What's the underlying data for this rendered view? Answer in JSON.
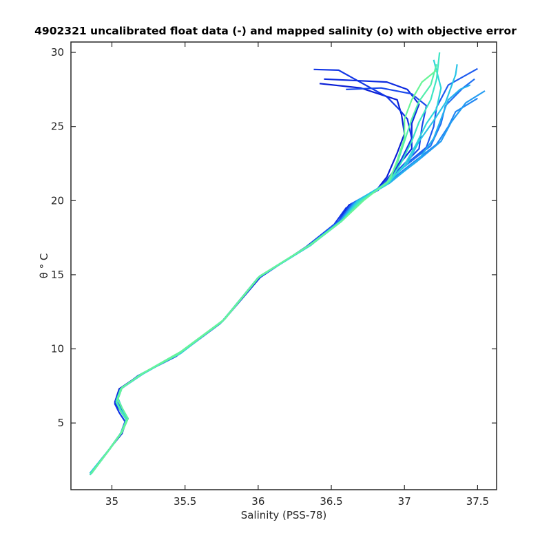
{
  "chart_data": {
    "type": "line",
    "title": "4902321 uncalibrated float data (-) and mapped salinity (o) with objective error",
    "xlabel": "Salinity (PSS-78)",
    "ylabel": "θ ° C",
    "xlim": [
      34.72,
      37.63
    ],
    "ylim": [
      0.5,
      30.7
    ],
    "xticks": [
      35,
      35.5,
      36,
      36.5,
      37,
      37.5
    ],
    "xtick_labels": [
      "35",
      "35.5",
      "36",
      "36.5",
      "37",
      "37.5"
    ],
    "yticks": [
      5,
      10,
      15,
      20,
      25,
      30
    ],
    "ytick_labels": [
      "5",
      "10",
      "15",
      "20",
      "25",
      "30"
    ],
    "grid": false,
    "colormap_note": "profiles colored dark blue (early) to green (late)",
    "series": [
      {
        "color": "#0a1fd6",
        "points": [
          [
            34.85,
            1.6
          ],
          [
            34.98,
            3.2
          ],
          [
            35.07,
            4.3
          ],
          [
            35.1,
            5.2
          ],
          [
            35.06,
            5.8
          ],
          [
            35.02,
            6.4
          ],
          [
            35.05,
            7.3
          ],
          [
            35.2,
            8.3
          ],
          [
            35.45,
            9.6
          ],
          [
            35.75,
            11.8
          ],
          [
            36.0,
            14.8
          ],
          [
            36.35,
            17.0
          ],
          [
            36.55,
            18.6
          ],
          [
            36.62,
            19.7
          ],
          [
            36.8,
            20.6
          ],
          [
            36.88,
            21.6
          ],
          [
            36.95,
            23.2
          ],
          [
            37.0,
            24.5
          ],
          [
            36.98,
            25.8
          ],
          [
            36.95,
            26.8
          ],
          [
            36.7,
            27.6
          ],
          [
            36.42,
            27.9
          ]
        ]
      },
      {
        "color": "#0d2be0",
        "points": [
          [
            34.86,
            1.6
          ],
          [
            34.99,
            3.3
          ],
          [
            35.07,
            4.4
          ],
          [
            35.11,
            5.3
          ],
          [
            35.07,
            5.9
          ],
          [
            35.03,
            6.5
          ],
          [
            35.06,
            7.3
          ],
          [
            35.22,
            8.4
          ],
          [
            35.48,
            9.8
          ],
          [
            35.77,
            12.0
          ],
          [
            36.02,
            14.9
          ],
          [
            36.38,
            17.2
          ],
          [
            36.58,
            18.8
          ],
          [
            36.66,
            19.9
          ],
          [
            36.82,
            20.7
          ],
          [
            36.92,
            21.9
          ],
          [
            37.05,
            23.5
          ],
          [
            37.05,
            25.2
          ],
          [
            37.1,
            26.5
          ],
          [
            37.02,
            27.5
          ],
          [
            36.88,
            28.0
          ],
          [
            36.45,
            28.2
          ]
        ]
      },
      {
        "color": "#1236e6",
        "points": [
          [
            34.85,
            1.5
          ],
          [
            34.98,
            3.2
          ],
          [
            35.06,
            4.3
          ],
          [
            35.09,
            5.1
          ],
          [
            35.05,
            5.7
          ],
          [
            35.02,
            6.3
          ],
          [
            35.05,
            7.2
          ],
          [
            35.18,
            8.2
          ],
          [
            35.44,
            9.5
          ],
          [
            35.74,
            11.7
          ],
          [
            36.01,
            14.8
          ],
          [
            36.33,
            16.9
          ],
          [
            36.52,
            18.4
          ],
          [
            36.6,
            19.5
          ],
          [
            36.78,
            20.5
          ],
          [
            36.9,
            21.5
          ],
          [
            36.98,
            22.8
          ],
          [
            37.05,
            24.2
          ],
          [
            37.02,
            25.5
          ],
          [
            36.96,
            26.2
          ],
          [
            36.88,
            27.0
          ],
          [
            36.55,
            28.8
          ],
          [
            36.38,
            28.85
          ]
        ]
      },
      {
        "color": "#1b49ec",
        "points": [
          [
            34.86,
            1.6
          ],
          [
            34.99,
            3.3
          ],
          [
            35.07,
            4.4
          ],
          [
            35.1,
            5.2
          ],
          [
            35.06,
            5.8
          ],
          [
            35.03,
            6.5
          ],
          [
            35.06,
            7.3
          ],
          [
            35.21,
            8.3
          ],
          [
            35.46,
            9.7
          ],
          [
            35.76,
            11.9
          ],
          [
            36.0,
            14.8
          ],
          [
            36.36,
            17.0
          ],
          [
            36.56,
            18.6
          ],
          [
            36.64,
            19.8
          ],
          [
            36.8,
            20.6
          ],
          [
            36.95,
            22.0
          ],
          [
            37.1,
            23.5
          ],
          [
            37.12,
            25.0
          ],
          [
            37.15,
            26.4
          ],
          [
            37.05,
            27.2
          ],
          [
            36.84,
            27.6
          ],
          [
            36.6,
            27.5
          ]
        ]
      },
      {
        "color": "#1e5bf0",
        "points": [
          [
            34.85,
            1.6
          ],
          [
            34.98,
            3.2
          ],
          [
            35.06,
            4.3
          ],
          [
            35.1,
            5.2
          ],
          [
            35.06,
            5.8
          ],
          [
            35.03,
            6.4
          ],
          [
            35.06,
            7.3
          ],
          [
            35.2,
            8.3
          ],
          [
            35.45,
            9.6
          ],
          [
            35.75,
            11.8
          ],
          [
            36.0,
            14.8
          ],
          [
            36.35,
            17.0
          ],
          [
            36.55,
            18.6
          ],
          [
            36.64,
            19.8
          ],
          [
            36.82,
            20.8
          ],
          [
            36.98,
            22.2
          ],
          [
            37.15,
            23.6
          ],
          [
            37.2,
            25.0
          ],
          [
            37.22,
            26.3
          ],
          [
            37.3,
            27.8
          ],
          [
            37.5,
            28.9
          ]
        ]
      },
      {
        "color": "#2070f2",
        "points": [
          [
            34.86,
            1.6
          ],
          [
            34.99,
            3.3
          ],
          [
            35.07,
            4.4
          ],
          [
            35.11,
            5.3
          ],
          [
            35.07,
            6.0
          ],
          [
            35.04,
            6.6
          ],
          [
            35.07,
            7.4
          ],
          [
            35.22,
            8.4
          ],
          [
            35.47,
            9.7
          ],
          [
            35.77,
            12.0
          ],
          [
            36.01,
            14.9
          ],
          [
            36.37,
            17.1
          ],
          [
            36.57,
            18.7
          ],
          [
            36.66,
            19.9
          ],
          [
            36.85,
            21.0
          ],
          [
            37.0,
            22.3
          ],
          [
            37.18,
            23.7
          ],
          [
            37.25,
            25.2
          ],
          [
            37.28,
            26.4
          ],
          [
            37.4,
            27.6
          ],
          [
            37.48,
            28.2
          ]
        ]
      },
      {
        "color": "#2287f3",
        "points": [
          [
            34.85,
            1.6
          ],
          [
            34.98,
            3.2
          ],
          [
            35.07,
            4.4
          ],
          [
            35.1,
            5.2
          ],
          [
            35.06,
            5.9
          ],
          [
            35.03,
            6.5
          ],
          [
            35.06,
            7.3
          ],
          [
            35.21,
            8.3
          ],
          [
            35.46,
            9.7
          ],
          [
            35.76,
            11.9
          ],
          [
            36.0,
            14.8
          ],
          [
            36.36,
            17.0
          ],
          [
            36.56,
            18.6
          ],
          [
            36.65,
            19.8
          ],
          [
            36.86,
            21.0
          ],
          [
            37.05,
            22.5
          ],
          [
            37.22,
            23.8
          ],
          [
            37.3,
            25.0
          ],
          [
            37.35,
            26.0
          ],
          [
            37.5,
            26.9
          ]
        ]
      },
      {
        "color": "#249cf2",
        "points": [
          [
            34.86,
            1.6
          ],
          [
            34.99,
            3.3
          ],
          [
            35.07,
            4.4
          ],
          [
            35.1,
            5.3
          ],
          [
            35.07,
            6.0
          ],
          [
            35.04,
            6.6
          ],
          [
            35.07,
            7.4
          ],
          [
            35.22,
            8.4
          ],
          [
            35.47,
            9.8
          ],
          [
            35.77,
            12.0
          ],
          [
            36.01,
            14.9
          ],
          [
            36.37,
            17.1
          ],
          [
            36.57,
            18.7
          ],
          [
            36.67,
            19.9
          ],
          [
            36.88,
            21.1
          ],
          [
            37.08,
            22.6
          ],
          [
            37.25,
            24.0
          ],
          [
            37.32,
            25.3
          ],
          [
            37.42,
            26.6
          ],
          [
            37.55,
            27.4
          ]
        ]
      },
      {
        "color": "#26b0ee",
        "points": [
          [
            34.85,
            1.5
          ],
          [
            34.98,
            3.2
          ],
          [
            35.06,
            4.3
          ],
          [
            35.1,
            5.2
          ],
          [
            35.06,
            5.8
          ],
          [
            35.03,
            6.4
          ],
          [
            35.06,
            7.3
          ],
          [
            35.2,
            8.3
          ],
          [
            35.45,
            9.6
          ],
          [
            35.75,
            11.8
          ],
          [
            36.0,
            14.8
          ],
          [
            36.35,
            17.0
          ],
          [
            36.56,
            18.6
          ],
          [
            36.66,
            19.8
          ],
          [
            36.9,
            21.2
          ],
          [
            37.1,
            22.8
          ],
          [
            37.2,
            24.2
          ],
          [
            37.25,
            25.5
          ],
          [
            37.3,
            26.8
          ],
          [
            37.38,
            27.5
          ],
          [
            37.45,
            27.8
          ]
        ]
      },
      {
        "color": "#29c4e6",
        "points": [
          [
            34.86,
            1.6
          ],
          [
            34.99,
            3.3
          ],
          [
            35.07,
            4.4
          ],
          [
            35.1,
            5.3
          ],
          [
            35.07,
            6.0
          ],
          [
            35.04,
            6.7
          ],
          [
            35.07,
            7.4
          ],
          [
            35.22,
            8.4
          ],
          [
            35.47,
            9.7
          ],
          [
            35.77,
            12.0
          ],
          [
            36.01,
            14.9
          ],
          [
            36.37,
            17.1
          ],
          [
            36.58,
            18.7
          ],
          [
            36.68,
            20.0
          ],
          [
            36.88,
            21.2
          ],
          [
            37.02,
            22.5
          ],
          [
            37.1,
            24.0
          ],
          [
            37.2,
            25.4
          ],
          [
            37.28,
            26.6
          ],
          [
            37.35,
            28.5
          ],
          [
            37.36,
            29.2
          ]
        ]
      },
      {
        "color": "#2fd6da",
        "points": [
          [
            34.85,
            1.6
          ],
          [
            34.98,
            3.2
          ],
          [
            35.06,
            4.3
          ],
          [
            35.1,
            5.2
          ],
          [
            35.06,
            5.9
          ],
          [
            35.03,
            6.5
          ],
          [
            35.06,
            7.3
          ],
          [
            35.21,
            8.3
          ],
          [
            35.46,
            9.7
          ],
          [
            35.76,
            11.9
          ],
          [
            36.0,
            14.8
          ],
          [
            36.36,
            17.0
          ],
          [
            36.57,
            18.6
          ],
          [
            36.68,
            19.9
          ],
          [
            36.88,
            21.1
          ],
          [
            37.0,
            22.4
          ],
          [
            37.08,
            23.8
          ],
          [
            37.15,
            25.2
          ],
          [
            37.22,
            26.2
          ],
          [
            37.25,
            27.6
          ],
          [
            37.2,
            29.5
          ]
        ]
      },
      {
        "color": "#3ee5c4",
        "points": [
          [
            34.86,
            1.6
          ],
          [
            34.99,
            3.3
          ],
          [
            35.07,
            4.4
          ],
          [
            35.11,
            5.3
          ],
          [
            35.07,
            6.0
          ],
          [
            35.04,
            6.6
          ],
          [
            35.07,
            7.4
          ],
          [
            35.22,
            8.4
          ],
          [
            35.47,
            9.8
          ],
          [
            35.77,
            12.0
          ],
          [
            36.01,
            14.9
          ],
          [
            36.37,
            17.1
          ],
          [
            36.58,
            18.7
          ],
          [
            36.7,
            20.0
          ],
          [
            36.9,
            21.3
          ],
          [
            36.98,
            22.6
          ],
          [
            37.05,
            24.0
          ],
          [
            37.1,
            25.3
          ],
          [
            37.18,
            26.8
          ],
          [
            37.22,
            28.2
          ],
          [
            37.24,
            30.0
          ]
        ]
      },
      {
        "color": "#52eeac",
        "points": [
          [
            34.85,
            1.5
          ],
          [
            34.98,
            3.2
          ],
          [
            35.06,
            4.3
          ],
          [
            35.1,
            5.2
          ],
          [
            35.06,
            5.8
          ],
          [
            35.03,
            6.4
          ],
          [
            35.06,
            7.3
          ],
          [
            35.2,
            8.3
          ],
          [
            35.45,
            9.6
          ],
          [
            35.75,
            11.8
          ],
          [
            36.0,
            14.8
          ],
          [
            36.35,
            17.0
          ],
          [
            36.57,
            18.6
          ],
          [
            36.7,
            19.9
          ],
          [
            36.88,
            21.2
          ],
          [
            36.95,
            22.5
          ],
          [
            37.0,
            24.0
          ],
          [
            37.05,
            25.5
          ],
          [
            37.1,
            26.7
          ],
          [
            37.18,
            27.8
          ],
          [
            37.22,
            29.2
          ]
        ]
      },
      {
        "color": "#68f598",
        "points": [
          [
            34.86,
            1.6
          ],
          [
            34.99,
            3.3
          ],
          [
            35.07,
            4.4
          ],
          [
            35.11,
            5.3
          ],
          [
            35.07,
            6.0
          ],
          [
            35.04,
            6.6
          ],
          [
            35.07,
            7.4
          ],
          [
            35.22,
            8.4
          ],
          [
            35.47,
            9.8
          ],
          [
            35.77,
            12.0
          ],
          [
            36.01,
            14.9
          ],
          [
            36.37,
            17.1
          ],
          [
            36.58,
            18.7
          ],
          [
            36.72,
            20.0
          ],
          [
            36.9,
            21.4
          ],
          [
            36.95,
            22.7
          ],
          [
            37.0,
            24.2
          ],
          [
            37.0,
            25.5
          ],
          [
            37.05,
            26.8
          ],
          [
            37.12,
            28.0
          ],
          [
            37.22,
            28.8
          ]
        ]
      }
    ]
  }
}
